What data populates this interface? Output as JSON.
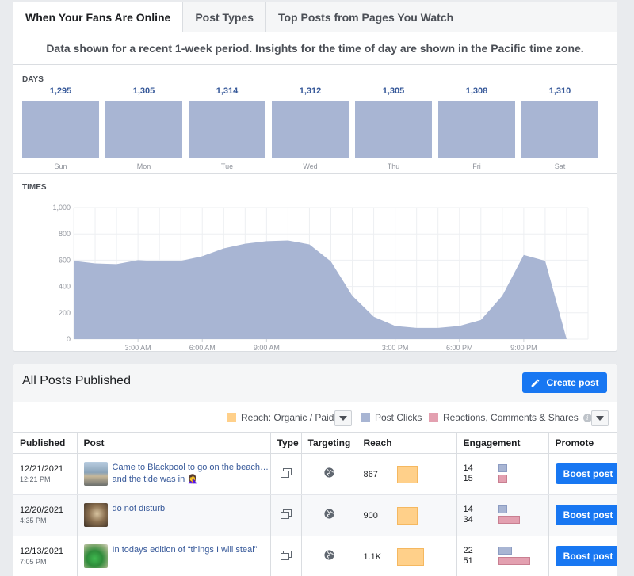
{
  "tabs": [
    {
      "label": "When Your Fans Are Online"
    },
    {
      "label": "Post Types"
    },
    {
      "label": "Top Posts from Pages You Watch"
    }
  ],
  "info_text": "Data shown for a recent 1-week period. Insights for the time of day are shown in the Pacific time zone.",
  "days_label": "DAYS",
  "times_label": "TIMES",
  "days": [
    {
      "name": "Sun",
      "value": "1,295"
    },
    {
      "name": "Mon",
      "value": "1,305"
    },
    {
      "name": "Tue",
      "value": "1,314"
    },
    {
      "name": "Wed",
      "value": "1,312"
    },
    {
      "name": "Thu",
      "value": "1,305"
    },
    {
      "name": "Fri",
      "value": "1,308"
    },
    {
      "name": "Sat",
      "value": "1,310"
    }
  ],
  "chart_data": {
    "type": "area",
    "x": [
      0,
      1,
      2,
      3,
      4,
      5,
      6,
      7,
      8,
      9,
      10,
      11,
      12,
      13,
      14,
      15,
      16,
      17,
      18,
      19,
      20,
      21,
      22,
      23
    ],
    "y": [
      595,
      575,
      570,
      600,
      590,
      595,
      630,
      690,
      725,
      745,
      750,
      720,
      590,
      330,
      170,
      100,
      85,
      85,
      100,
      145,
      330,
      640,
      595,
      0
    ],
    "x_tick_labels": [
      "3:00 AM",
      "6:00 AM",
      "9:00 AM",
      "3:00 PM",
      "6:00 PM",
      "9:00 PM"
    ],
    "x_tick_hours": [
      3,
      6,
      9,
      15,
      18,
      21
    ],
    "y_ticks": [
      "0",
      "200",
      "400",
      "600",
      "800",
      "1,000"
    ],
    "ylim": [
      0,
      1000
    ],
    "color": "#a8b5d3",
    "grid": true
  },
  "posts_panel": {
    "title": "All Posts Published",
    "create_label": "Create post",
    "legend": {
      "reach": "Reach: Organic / Paid",
      "clicks": "Post Clicks",
      "reactions": "Reactions, Comments & Shares",
      "reach_color": "#ffd08a",
      "clicks_color": "#a8b5d3",
      "reactions_color": "#e3a0b0"
    },
    "columns": [
      "Published",
      "Post",
      "Type",
      "Targeting",
      "Reach",
      "Engagement",
      "Promote"
    ],
    "rows": [
      {
        "date": "12/21/2021",
        "time": "12:21 PM",
        "text": "Came to Blackpool to go on the beach… and the tide was in 🤦‍♀️",
        "reach": "867",
        "eng1": "14",
        "eng2": "15",
        "boost": "Boost post"
      },
      {
        "date": "12/20/2021",
        "time": "4:35 PM",
        "text": "do not disturb",
        "reach": "900",
        "eng1": "14",
        "eng2": "34",
        "boost": "Boost post"
      },
      {
        "date": "12/13/2021",
        "time": "7:05 PM",
        "text": "In todays edition of “things I will steal”",
        "reach": "1.1K",
        "eng1": "22",
        "eng2": "51",
        "boost": "Boost post"
      }
    ]
  }
}
